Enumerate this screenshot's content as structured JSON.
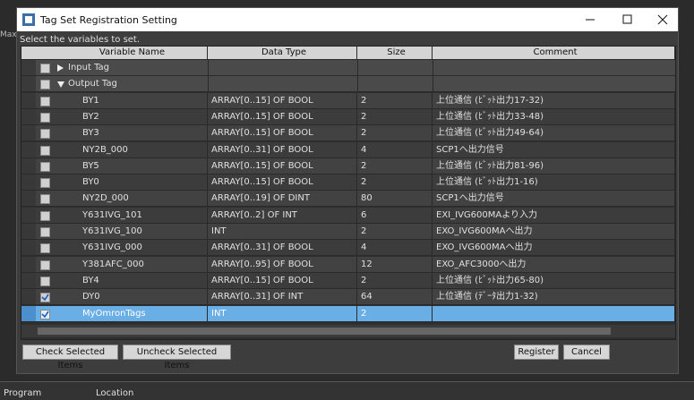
{
  "background": {
    "left_label": "Max",
    "bottom_labels": [
      "Program",
      "Location"
    ]
  },
  "dialog": {
    "title": "Tag Set Registration Setting",
    "instruction": "Select the variables to set.",
    "table": {
      "columns": [
        "Variable Name",
        "Data Type",
        "Size",
        "Comment"
      ],
      "groups": [
        {
          "label": "Input Tag",
          "expanded": false,
          "rows": []
        },
        {
          "label": "Output Tag",
          "expanded": true,
          "rows": [
            {
              "name": "BY1",
              "type": "ARRAY[0..15] OF BOOL",
              "size": "2",
              "comment": "上位通信 (ﾋﾞｯﾄ出力17-32)",
              "checked": false
            },
            {
              "name": "BY2",
              "type": "ARRAY[0..15] OF BOOL",
              "size": "2",
              "comment": "上位通信 (ﾋﾞｯﾄ出力33-48)",
              "checked": false
            },
            {
              "name": "BY3",
              "type": "ARRAY[0..15] OF BOOL",
              "size": "2",
              "comment": "上位通信 (ﾋﾞｯﾄ出力49-64)",
              "checked": false
            },
            {
              "name": "NY2B_000",
              "type": "ARRAY[0..31] OF BOOL",
              "size": "4",
              "comment": "SCP1へ出力信号",
              "checked": false
            },
            {
              "name": "BY5",
              "type": "ARRAY[0..15] OF BOOL",
              "size": "2",
              "comment": "上位通信 (ﾋﾞｯﾄ出力81-96)",
              "checked": false
            },
            {
              "name": "BY0",
              "type": "ARRAY[0..15] OF BOOL",
              "size": "2",
              "comment": "上位通信 (ﾋﾞｯﾄ出力1-16)",
              "checked": false
            },
            {
              "name": "NY2D_000",
              "type": "ARRAY[0..19] OF DINT",
              "size": "80",
              "comment": "SCP1へ出力信号",
              "checked": false
            },
            {
              "name": "Y631IVG_101",
              "type": "ARRAY[0..2] OF INT",
              "size": "6",
              "comment": "EXI_IVG600MAより入力",
              "checked": false
            },
            {
              "name": "Y631IVG_100",
              "type": "INT",
              "size": "2",
              "comment": "EXO_IVG600MAへ出力",
              "checked": false
            },
            {
              "name": "Y631IVG_000",
              "type": "ARRAY[0..31] OF BOOL",
              "size": "4",
              "comment": "EXO_IVG600MAへ出力",
              "checked": false
            },
            {
              "name": "Y381AFC_000",
              "type": "ARRAY[0..95] OF BOOL",
              "size": "12",
              "comment": "EXO_AFC3000へ出力",
              "checked": false
            },
            {
              "name": "BY4",
              "type": "ARRAY[0..15] OF BOOL",
              "size": "2",
              "comment": "上位通信 (ﾋﾞｯﾄ出力65-80)",
              "checked": false
            },
            {
              "name": "DY0",
              "type": "ARRAY[0..31] OF INT",
              "size": "64",
              "comment": "上位通信 (ﾃﾞｰﾀ出力1-32)",
              "checked": true
            },
            {
              "name": "MyOmronTags",
              "type": "INT",
              "size": "2",
              "checked": true,
              "selected": true
            }
          ]
        }
      ]
    },
    "buttons": {
      "left": [
        "Check Selected Items",
        "Uncheck Selected Items"
      ],
      "right": [
        "Register",
        "Cancel"
      ]
    }
  }
}
